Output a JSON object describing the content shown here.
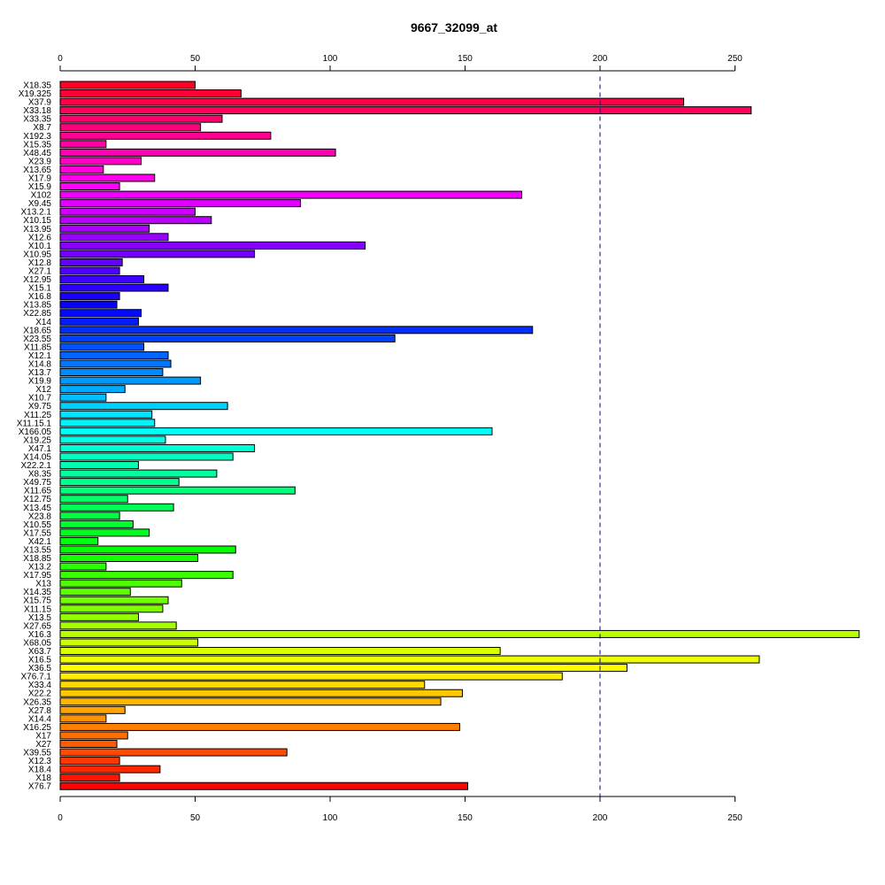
{
  "chart_data": {
    "type": "bar",
    "orientation": "horizontal",
    "title": "9667_32099_at",
    "xlabel": "",
    "ylabel": "",
    "xlim": [
      0,
      296
    ],
    "xticks": [
      0,
      50,
      100,
      150,
      200,
      250
    ],
    "xtick_labels": [
      "0",
      "50",
      "100",
      "150",
      "200",
      "250"
    ],
    "reference_line": 200,
    "reference_line_color": "#00008b",
    "axis_positions": [
      "top",
      "bottom"
    ],
    "categories": [
      "X18.35",
      "X19.325",
      "X37.9",
      "X33.18",
      "X33.35",
      "X8.7",
      "X192.3",
      "X15.35",
      "X48.45",
      "X23.9",
      "X13.65",
      "X17.9",
      "X15.9",
      "X102",
      "X9.45",
      "X13.2.1",
      "X10.15",
      "X13.95",
      "X12.6",
      "X10.1",
      "X10.95",
      "X12.8",
      "X27.1",
      "X12.95",
      "X15.1",
      "X16.8",
      "X13.85",
      "X22.85",
      "X14",
      "X18.65",
      "X23.55",
      "X11.85",
      "X12.1",
      "X14.8",
      "X13.7",
      "X19.9",
      "X12",
      "X10.7",
      "X9.75",
      "X11.25",
      "X11.15.1",
      "X166.05",
      "X19.25",
      "X47.1",
      "X14.05",
      "X22.2.1",
      "X8.35",
      "X49.75",
      "X11.65",
      "X12.75",
      "X13.45",
      "X23.8",
      "X10.55",
      "X17.55",
      "X42.1",
      "X13.55",
      "X18.85",
      "X13.2",
      "X17.95",
      "X13",
      "X14.35",
      "X15.75",
      "X11.15",
      "X13.5",
      "X27.65",
      "X16.3",
      "X68.05",
      "X63.7",
      "X16.5",
      "X36.5",
      "X76.7.1",
      "X33.4",
      "X22.2",
      "X26.35",
      "X27.8",
      "X14.4",
      "X16.25",
      "X17",
      "X27",
      "X39.55",
      "X12.3",
      "X18.4",
      "X18",
      "X76.7"
    ],
    "values": [
      50,
      67,
      231,
      256,
      60,
      52,
      78,
      17,
      102,
      30,
      16,
      35,
      22,
      171,
      89,
      50,
      56,
      33,
      40,
      113,
      72,
      23,
      22,
      31,
      40,
      22,
      21,
      30,
      29,
      175,
      124,
      31,
      40,
      41,
      38,
      52,
      24,
      17,
      62,
      34,
      35,
      160,
      39,
      72,
      64,
      29,
      58,
      44,
      87,
      25,
      42,
      22,
      27,
      33,
      14,
      65,
      51,
      17,
      64,
      45,
      26,
      40,
      38,
      29,
      43,
      296,
      51,
      163,
      259,
      210,
      186,
      135,
      149,
      141,
      24,
      17,
      148,
      25,
      21,
      84,
      22,
      37,
      22,
      151
    ],
    "colors": [
      "#ff0024",
      "#ff0036",
      "#ff0048",
      "#ff005a",
      "#ff006c",
      "#ff007e",
      "#ff0090",
      "#ff00a2",
      "#ff00b4",
      "#ff00c6",
      "#ff00d8",
      "#ff00ea",
      "#ff00fc",
      "#f200ff",
      "#e000ff",
      "#ce00ff",
      "#bc00ff",
      "#aa00ff",
      "#9800ff",
      "#8600ff",
      "#7400ff",
      "#6200ff",
      "#5000ff",
      "#3e00ff",
      "#2c00ff",
      "#1a00ff",
      "#0800ff",
      "#000aff",
      "#001cff",
      "#002eff",
      "#0040ff",
      "#0052ff",
      "#0064ff",
      "#0076ff",
      "#0088ff",
      "#009aff",
      "#00acff",
      "#00beff",
      "#00d0ff",
      "#00e2ff",
      "#00f4ff",
      "#00fff8",
      "#00ffe6",
      "#00ffd4",
      "#00ffc2",
      "#00ffb0",
      "#00ff9e",
      "#00ff8c",
      "#00ff7a",
      "#00ff68",
      "#00ff56",
      "#00ff44",
      "#00ff32",
      "#00ff20",
      "#00ff0e",
      "#04ff00",
      "#16ff00",
      "#28ff00",
      "#3aff00",
      "#4cff00",
      "#5eff00",
      "#70ff00",
      "#82ff00",
      "#94ff00",
      "#a6ff00",
      "#b8ff00",
      "#caff00",
      "#dcff00",
      "#eeff00",
      "#fffe00",
      "#ffec00",
      "#ffda00",
      "#ffc800",
      "#ffb600",
      "#ffa400",
      "#ff9200",
      "#ff8000",
      "#ff6e00",
      "#ff5c00",
      "#ff4a00",
      "#ff3800",
      "#ff2600",
      "#ff1400",
      "#ff0200"
    ]
  }
}
